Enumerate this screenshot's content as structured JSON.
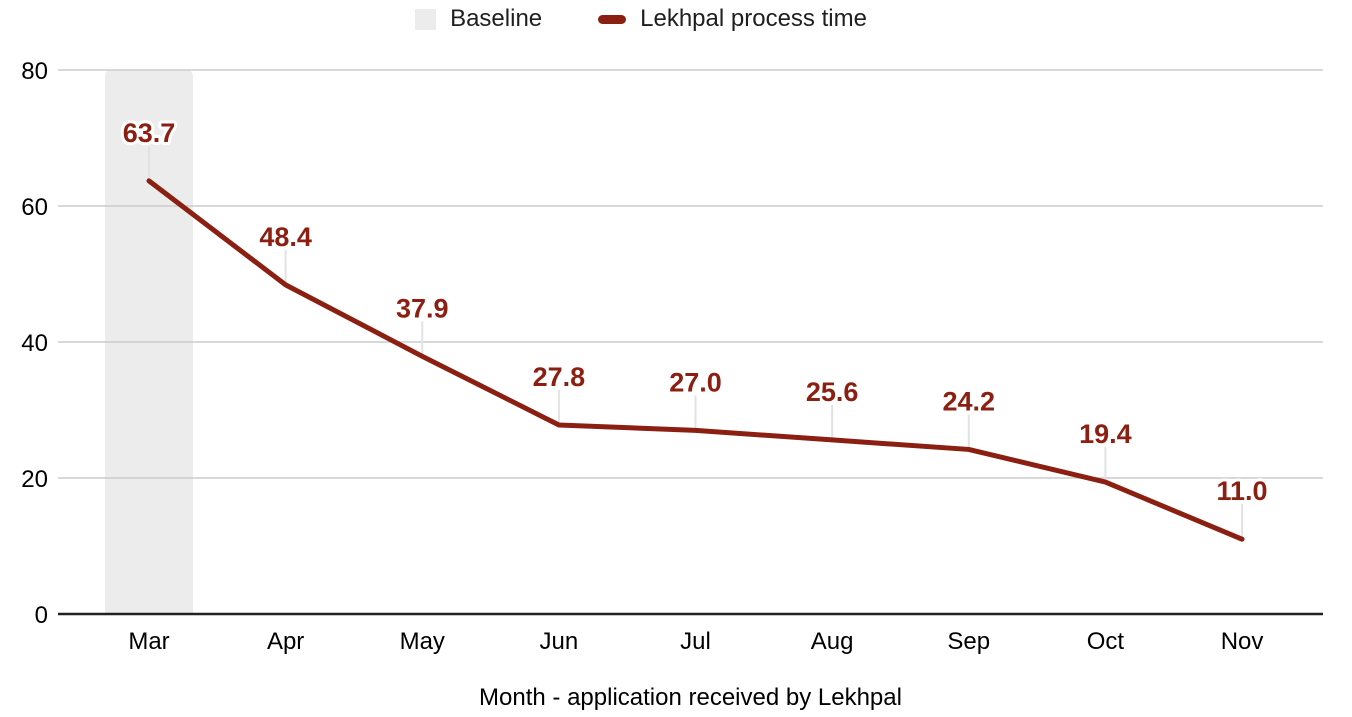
{
  "legend": {
    "items": [
      {
        "label": "Baseline",
        "swatch_type": "area",
        "color": "#ececec"
      },
      {
        "label": "Lekhpal process time",
        "swatch_type": "line",
        "color": "#8b2012"
      }
    ]
  },
  "chart_data": {
    "type": "line",
    "title": "",
    "xlabel": "Month - application received by Lekhpal",
    "ylabel": "",
    "categories": [
      "Mar",
      "Apr",
      "May",
      "Jun",
      "Jul",
      "Aug",
      "Sep",
      "Oct",
      "Nov"
    ],
    "series": [
      {
        "name": "Lekhpal process time",
        "color": "#8b2012",
        "values": [
          63.7,
          48.4,
          37.9,
          27.8,
          27.0,
          25.6,
          24.2,
          19.4,
          11.0
        ],
        "data_labels": [
          "63.7",
          "48.4",
          "37.9",
          "27.8",
          "27.0",
          "25.6",
          "24.2",
          "19.4",
          "11.0"
        ]
      }
    ],
    "baseline_band": {
      "name": "Baseline",
      "category": "Mar",
      "color": "#ececec"
    },
    "ylim": [
      0,
      80
    ],
    "yticks": [
      0,
      20,
      40,
      60,
      80
    ],
    "grid": true,
    "legend_position": "top",
    "label_color": "#8b2012",
    "gridline_color": "#cccccc",
    "axis_color": "#212121",
    "callout_color": "#e2e2e2",
    "tick_label_color": "#000000"
  }
}
